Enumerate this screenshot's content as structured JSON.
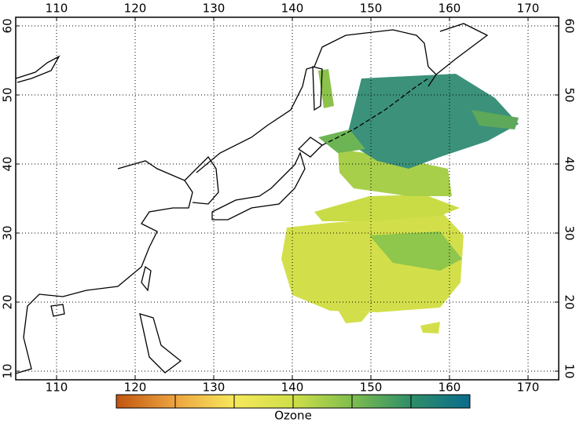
{
  "map": {
    "xlim": [
      104.8,
      173.9
    ],
    "ylim": [
      8.75,
      61.25
    ],
    "xticks": [
      110,
      120,
      130,
      140,
      150,
      160,
      170
    ],
    "yticks": [
      10,
      20,
      30,
      40,
      50,
      60
    ],
    "grid": true,
    "colorbar": {
      "label": "Ozone",
      "colors": [
        "#c0550f",
        "#eea440",
        "#f6e85c",
        "#cfdf48",
        "#7fbd4e",
        "#2e8e68",
        "#0a6c8c"
      ]
    }
  }
}
